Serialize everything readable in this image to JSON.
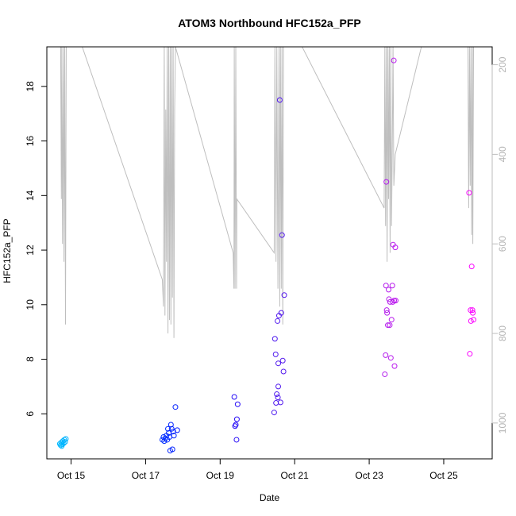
{
  "chart_data": {
    "type": "scatter",
    "title": "ATOM3 Northbound HFC152a_PFP",
    "xlabel": "Date",
    "ylabel": "HFC152a_PFP",
    "x_units": "days (Oct 2016)",
    "xlim": [
      14.35,
      26.3
    ],
    "ylim": [
      4.35,
      19.45
    ],
    "y_ticks": [
      6,
      8,
      10,
      12,
      14,
      16,
      18
    ],
    "x_ticks": [
      {
        "value": 15,
        "label": "Oct 15"
      },
      {
        "value": 17,
        "label": "Oct 17"
      },
      {
        "value": 19,
        "label": "Oct 19"
      },
      {
        "value": 21,
        "label": "Oct 21"
      },
      {
        "value": 23,
        "label": "Oct 23"
      },
      {
        "value": 25,
        "label": "Oct 25"
      }
    ],
    "y2_label": "",
    "y2lim": [
      1080,
      160
    ],
    "y2_ticks": [
      200,
      400,
      600,
      800,
      1000
    ],
    "y2_color": "#bebebe",
    "point_color_scale": [
      "#00bfff",
      "#0000ff",
      "#8a2be2",
      "#ff00ff"
    ],
    "points": [
      [
        14.7,
        4.9
      ],
      [
        14.72,
        4.85
      ],
      [
        14.74,
        4.95
      ],
      [
        14.76,
        4.88
      ],
      [
        14.78,
        5.0
      ],
      [
        14.8,
        4.92
      ],
      [
        14.82,
        5.05
      ],
      [
        14.84,
        4.97
      ],
      [
        14.86,
        5.08
      ],
      [
        14.75,
        4.82
      ],
      [
        17.45,
        5.05
      ],
      [
        17.48,
        5.15
      ],
      [
        17.5,
        5.0
      ],
      [
        17.53,
        5.1
      ],
      [
        17.56,
        5.2
      ],
      [
        17.58,
        5.05
      ],
      [
        17.6,
        5.45
      ],
      [
        17.62,
        5.3
      ],
      [
        17.64,
        5.15
      ],
      [
        17.66,
        4.65
      ],
      [
        17.68,
        5.6
      ],
      [
        17.7,
        5.45
      ],
      [
        17.72,
        4.7
      ],
      [
        17.74,
        5.35
      ],
      [
        17.76,
        5.2
      ],
      [
        17.8,
        6.25
      ],
      [
        17.85,
        5.4
      ],
      [
        19.38,
        6.62
      ],
      [
        19.4,
        5.55
      ],
      [
        19.42,
        5.6
      ],
      [
        19.44,
        5.05
      ],
      [
        19.45,
        5.8
      ],
      [
        19.47,
        6.35
      ],
      [
        20.45,
        6.05
      ],
      [
        20.47,
        8.75
      ],
      [
        20.49,
        8.18
      ],
      [
        20.5,
        6.4
      ],
      [
        20.52,
        6.72
      ],
      [
        20.54,
        9.4
      ],
      [
        20.55,
        6.6
      ],
      [
        20.56,
        7.85
      ],
      [
        20.58,
        9.6
      ],
      [
        20.6,
        17.5
      ],
      [
        20.62,
        6.42
      ],
      [
        20.64,
        9.7
      ],
      [
        20.66,
        12.55
      ],
      [
        20.68,
        7.95
      ],
      [
        20.7,
        7.55
      ],
      [
        20.72,
        10.35
      ],
      [
        20.56,
        7.0
      ],
      [
        23.42,
        7.45
      ],
      [
        23.44,
        8.15
      ],
      [
        23.45,
        10.7
      ],
      [
        23.46,
        14.5
      ],
      [
        23.47,
        9.8
      ],
      [
        23.48,
        9.7
      ],
      [
        23.5,
        9.25
      ],
      [
        23.52,
        10.55
      ],
      [
        23.53,
        10.2
      ],
      [
        23.55,
        9.25
      ],
      [
        23.56,
        10.1
      ],
      [
        23.58,
        8.05
      ],
      [
        23.6,
        9.45
      ],
      [
        23.62,
        10.7
      ],
      [
        23.63,
        10.1
      ],
      [
        23.64,
        12.2
      ],
      [
        23.66,
        18.95
      ],
      [
        23.67,
        10.15
      ],
      [
        23.68,
        7.75
      ],
      [
        23.7,
        12.1
      ],
      [
        23.71,
        10.15
      ],
      [
        25.68,
        14.1
      ],
      [
        25.7,
        8.2
      ],
      [
        25.72,
        9.8
      ],
      [
        25.73,
        9.4
      ],
      [
        25.75,
        11.4
      ],
      [
        25.77,
        9.8
      ],
      [
        25.78,
        9.7
      ],
      [
        25.8,
        9.45
      ]
    ],
    "altitude_line": [
      [
        14.72,
        160
      ],
      [
        14.74,
        500
      ],
      [
        14.75,
        160
      ],
      [
        14.77,
        600
      ],
      [
        14.79,
        160
      ],
      [
        14.81,
        640
      ],
      [
        14.83,
        160
      ],
      [
        14.85,
        780
      ],
      [
        14.87,
        160
      ],
      [
        15.3,
        160
      ],
      [
        17.45,
        680
      ],
      [
        17.48,
        740
      ],
      [
        17.5,
        160
      ],
      [
        17.52,
        760
      ],
      [
        17.54,
        300
      ],
      [
        17.56,
        640
      ],
      [
        17.58,
        160
      ],
      [
        17.6,
        800
      ],
      [
        17.62,
        160
      ],
      [
        17.64,
        770
      ],
      [
        17.66,
        160
      ],
      [
        17.68,
        780
      ],
      [
        17.7,
        160
      ],
      [
        17.72,
        720
      ],
      [
        17.74,
        160
      ],
      [
        17.76,
        810
      ],
      [
        17.78,
        300
      ],
      [
        17.8,
        160
      ],
      [
        19.35,
        620
      ],
      [
        19.37,
        700
      ],
      [
        19.38,
        160
      ],
      [
        19.4,
        700
      ],
      [
        19.42,
        160
      ],
      [
        19.44,
        700
      ],
      [
        19.45,
        500
      ],
      [
        20.45,
        620
      ],
      [
        20.47,
        160
      ],
      [
        20.5,
        640
      ],
      [
        20.52,
        160
      ],
      [
        20.55,
        700
      ],
      [
        20.58,
        160
      ],
      [
        20.6,
        740
      ],
      [
        20.62,
        160
      ],
      [
        20.64,
        700
      ],
      [
        20.66,
        160
      ],
      [
        20.68,
        780
      ],
      [
        20.7,
        160
      ],
      [
        21.2,
        160
      ],
      [
        23.4,
        520
      ],
      [
        23.42,
        160
      ],
      [
        23.44,
        560
      ],
      [
        23.46,
        160
      ],
      [
        23.48,
        640
      ],
      [
        23.5,
        160
      ],
      [
        23.52,
        500
      ],
      [
        23.54,
        160
      ],
      [
        23.56,
        620
      ],
      [
        23.58,
        160
      ],
      [
        23.6,
        560
      ],
      [
        23.62,
        380
      ],
      [
        23.64,
        160
      ],
      [
        23.66,
        470
      ],
      [
        23.7,
        400
      ],
      [
        24.4,
        160
      ],
      [
        25.65,
        160
      ],
      [
        25.67,
        520
      ],
      [
        25.69,
        160
      ],
      [
        25.71,
        470
      ],
      [
        25.73,
        160
      ],
      [
        25.75,
        580
      ],
      [
        25.77,
        160
      ],
      [
        25.78,
        600
      ],
      [
        25.8,
        160
      ]
    ]
  }
}
